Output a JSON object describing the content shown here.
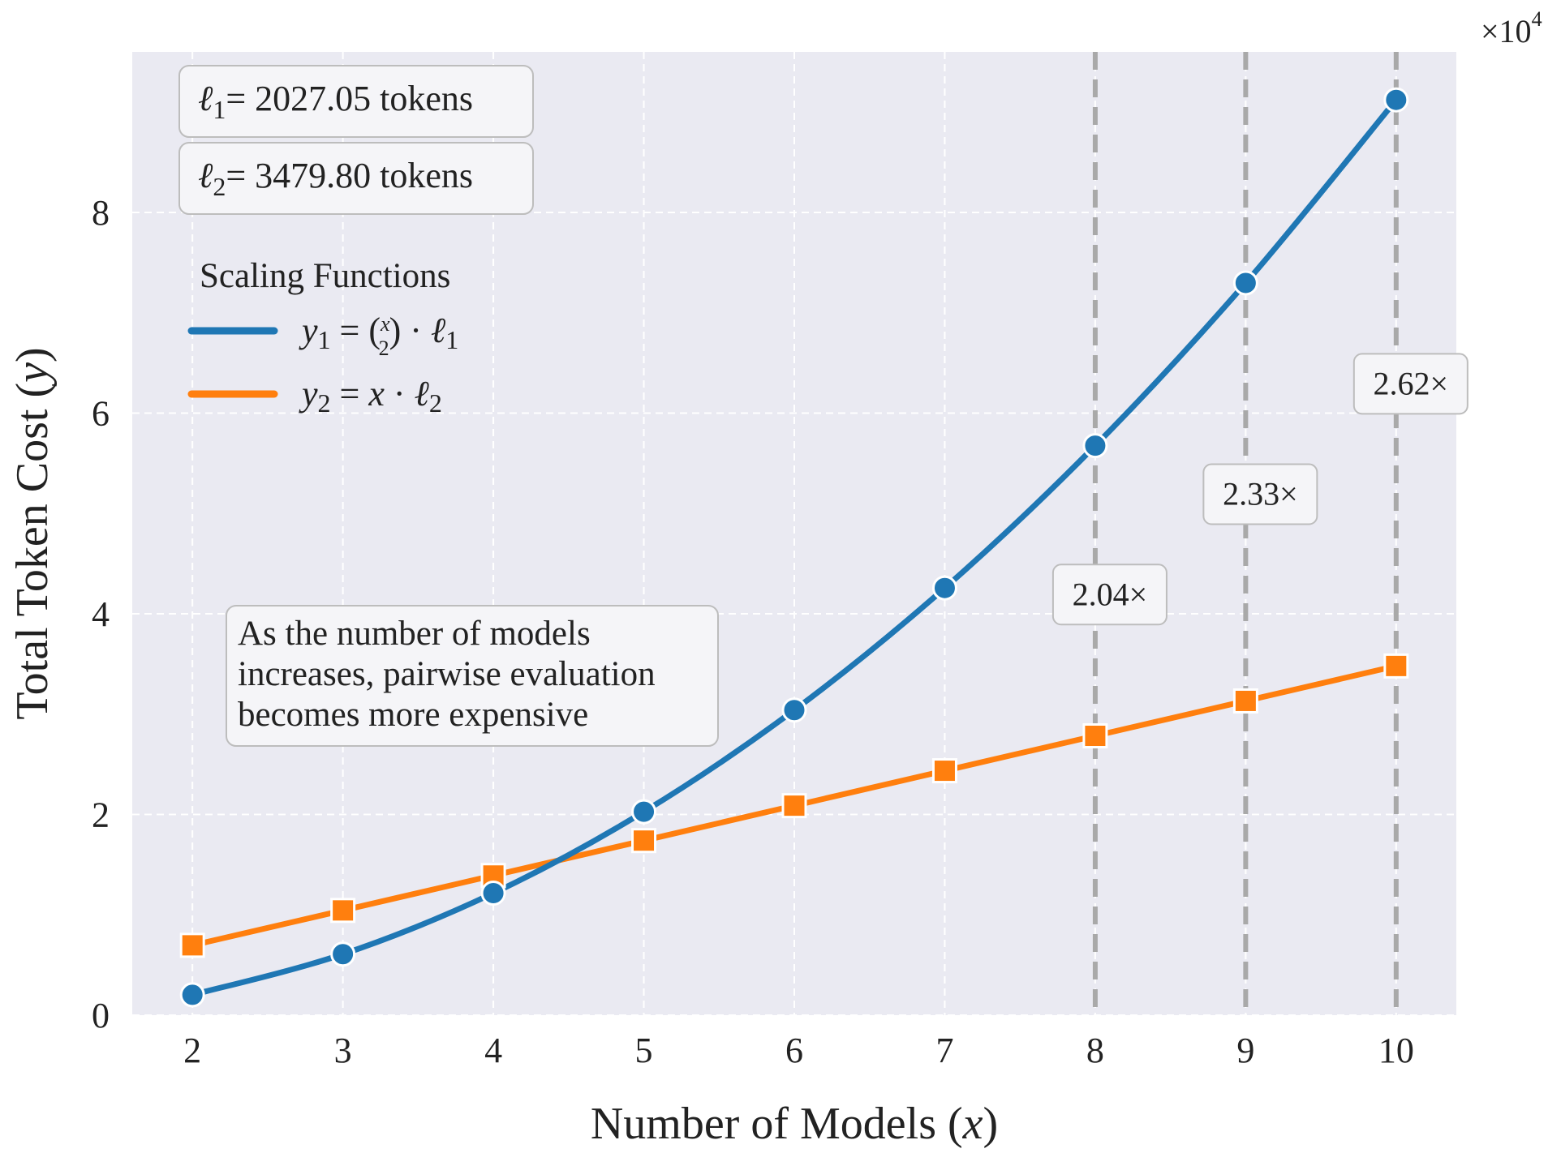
{
  "chart_data": {
    "type": "line",
    "xlabel_prefix": "Number of Models (",
    "xlabel_var": "x",
    "xlabel_suffix": ")",
    "ylabel_prefix": "Total Token Cost (",
    "ylabel_var": "y",
    "ylabel_suffix": ")",
    "y_scale_label": "×10",
    "y_scale_exponent": "4",
    "xlim": [
      1.6,
      10.4
    ],
    "ylim": [
      0,
      9.6
    ],
    "x_ticks": [
      2,
      3,
      4,
      5,
      6,
      7,
      8,
      9,
      10
    ],
    "y_ticks": [
      0,
      2,
      4,
      6,
      8
    ],
    "grid": true,
    "x": [
      2,
      3,
      4,
      5,
      6,
      7,
      8,
      9,
      10
    ],
    "series": [
      {
        "name": "y1 = C(x,2) · ℓ1",
        "color": "#1f77b4",
        "marker": "circle",
        "values": [
          0.2027,
          0.6081,
          1.2162,
          2.0271,
          3.0406,
          4.2569,
          5.6757,
          7.2974,
          9.1217
        ]
      },
      {
        "name": "y2 = x · ℓ2",
        "color": "#ff7f0e",
        "marker": "square",
        "values": [
          0.696,
          1.0439,
          1.3919,
          1.7399,
          2.0879,
          2.4359,
          2.7838,
          3.1318,
          3.4798
        ]
      }
    ],
    "ratio_lines": [
      {
        "x": 8,
        "label": "2.04×",
        "label_y": 4.2
      },
      {
        "x": 9,
        "label": "2.33×",
        "label_y": 5.2
      },
      {
        "x": 10,
        "label": "2.62×",
        "label_y": 6.3
      }
    ],
    "ell_boxes": [
      {
        "sub": "1",
        "text": "= 2027.05 tokens"
      },
      {
        "sub": "2",
        "text": "= 3479.80 tokens"
      }
    ],
    "legend": {
      "title": "Scaling Functions",
      "entries": [
        {
          "color": "#1f77b4"
        },
        {
          "color": "#ff7f0e"
        }
      ]
    },
    "annotation": [
      "As the number of models",
      "increases, pairwise evaluation",
      "becomes more expensive"
    ],
    "ratio_line_color": "#a9a9a9",
    "background": "#eaeaf2"
  }
}
